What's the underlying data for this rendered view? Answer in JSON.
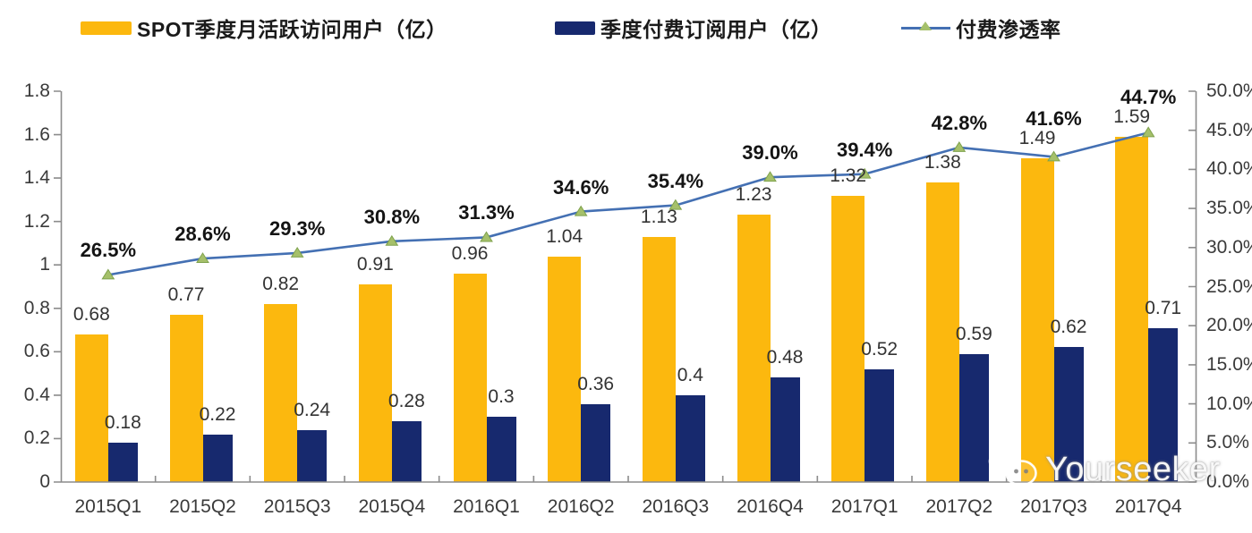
{
  "legend": [
    {
      "label": "SPOT季度月活跃访问用户（亿）",
      "color": "#FCB80E",
      "type": "bar-swatch"
    },
    {
      "label": "季度付费订阅用户（亿）",
      "color": "#17296E",
      "type": "bar-swatch"
    },
    {
      "label": "付费渗透率",
      "color": "#4470B3",
      "marker_color": "#A5C06A",
      "type": "line-swatch"
    }
  ],
  "chart_data": {
    "type": "combo-bar-line",
    "categories": [
      "2015Q1",
      "2015Q2",
      "2015Q3",
      "2015Q4",
      "2016Q1",
      "2016Q2",
      "2016Q3",
      "2016Q4",
      "2017Q1",
      "2017Q2",
      "2017Q3",
      "2017Q4"
    ],
    "series": [
      {
        "name": "SPOT季度月活跃访问用户（亿）",
        "type": "bar",
        "axis": "left",
        "color": "#FCB80E",
        "values": [
          0.68,
          0.77,
          0.82,
          0.91,
          0.96,
          1.04,
          1.13,
          1.23,
          1.32,
          1.38,
          1.49,
          1.59
        ]
      },
      {
        "name": "季度付费订阅用户（亿）",
        "type": "bar",
        "axis": "left",
        "color": "#17296E",
        "values": [
          0.18,
          0.22,
          0.24,
          0.28,
          0.3,
          0.36,
          0.4,
          0.48,
          0.52,
          0.59,
          0.62,
          0.71
        ]
      },
      {
        "name": "付费渗透率",
        "type": "line",
        "axis": "right",
        "color": "#4470B3",
        "marker": "triangle",
        "marker_color": "#A5C06A",
        "marker_stroke": "#7FA24D",
        "values": [
          26.5,
          28.6,
          29.3,
          30.8,
          31.3,
          34.6,
          35.4,
          39.0,
          39.4,
          42.8,
          41.6,
          44.7
        ],
        "labels": [
          "26.5%",
          "28.6%",
          "29.3%",
          "30.8%",
          "31.3%",
          "34.6%",
          "35.4%",
          "39.0%",
          "39.4%",
          "42.8%",
          "41.6%",
          "44.7%"
        ]
      }
    ],
    "left_axis": {
      "min": 0,
      "max": 1.8,
      "step": 0.2,
      "ticks": [
        "1.8",
        "1.6",
        "1.4",
        "1.2",
        "1",
        "0.8",
        "0.6",
        "0.4",
        "0.2",
        "0"
      ]
    },
    "right_axis": {
      "min": 0,
      "max": 50,
      "step": 5,
      "ticks": [
        "50.0%",
        "45.0%",
        "40.0%",
        "35.0%",
        "30.0%",
        "25.0%",
        "20.0%",
        "15.0%",
        "10.0%",
        "5.0%",
        "0.0%"
      ]
    },
    "grid": false,
    "legend_position": "top"
  },
  "watermark": {
    "text": "Yourseeker",
    "icon": "wechat-icon"
  },
  "colors": {
    "axis_line": "#8C8C8C",
    "tick_label": "#3A3A3A",
    "value_label": "#333333",
    "pct_label": "#141414"
  }
}
